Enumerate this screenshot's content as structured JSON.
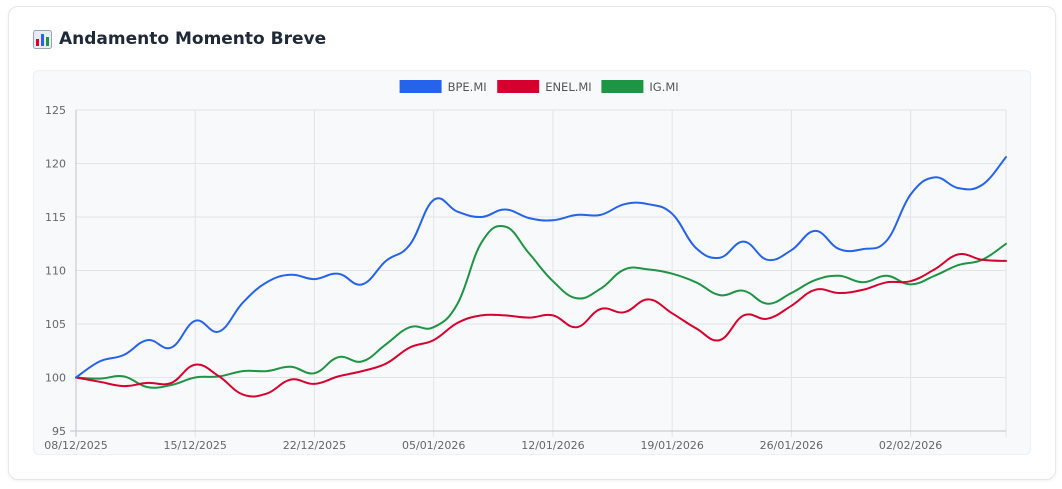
{
  "header": {
    "title": "Andamento Momento Breve",
    "icon": "bar-chart-icon"
  },
  "chart_data": {
    "type": "line",
    "title": "",
    "xlabel": "",
    "ylabel": "",
    "ylim": [
      95,
      125
    ],
    "yticks": [
      95,
      100,
      105,
      110,
      115,
      120,
      125
    ],
    "grid": true,
    "legend_position": "top-center",
    "x_tick_labels": [
      "08/12/2025",
      "15/12/2025",
      "22/12/2025",
      "05/01/2026",
      "12/01/2026",
      "19/01/2026",
      "26/01/2026",
      "02/02/2026"
    ],
    "x_tick_index": [
      0,
      5,
      10,
      15,
      20,
      25,
      30,
      35
    ],
    "series": [
      {
        "name": "BPE.MI",
        "color": "#2563eb",
        "values": [
          100.0,
          101.5,
          102.1,
          103.5,
          102.8,
          105.3,
          104.3,
          107.0,
          108.9,
          109.6,
          109.2,
          109.7,
          108.7,
          110.9,
          112.4,
          116.6,
          115.5,
          115.0,
          115.7,
          114.9,
          114.7,
          115.2,
          115.2,
          116.2,
          116.2,
          115.3,
          112.1,
          111.2,
          112.7,
          111.0,
          111.9,
          113.7,
          112.0,
          112.0,
          112.8,
          117.1,
          118.7,
          117.7,
          118.0,
          120.6
        ]
      },
      {
        "name": "ENEL.MI",
        "color": "#d6002e",
        "values": [
          100.0,
          99.6,
          99.2,
          99.5,
          99.5,
          101.2,
          100.1,
          98.4,
          98.5,
          99.8,
          99.4,
          100.1,
          100.6,
          101.3,
          102.8,
          103.5,
          105.1,
          105.8,
          105.8,
          105.6,
          105.8,
          104.7,
          106.4,
          106.1,
          107.3,
          106.0,
          104.6,
          103.5,
          105.8,
          105.5,
          106.7,
          108.2,
          107.9,
          108.2,
          108.9,
          109.0,
          110.1,
          111.5,
          111.0,
          110.9
        ]
      },
      {
        "name": "IG.MI",
        "color": "#1e9445",
        "values": [
          100.0,
          99.9,
          100.1,
          99.1,
          99.3,
          100.0,
          100.1,
          100.6,
          100.6,
          101.0,
          100.4,
          101.9,
          101.5,
          103.1,
          104.7,
          104.7,
          106.9,
          112.6,
          114.1,
          111.6,
          109.0,
          107.4,
          108.3,
          110.1,
          110.1,
          109.7,
          108.9,
          107.7,
          108.1,
          106.9,
          107.9,
          109.1,
          109.5,
          108.9,
          109.5,
          108.7,
          109.5,
          110.5,
          111.0,
          112.5
        ]
      }
    ]
  }
}
